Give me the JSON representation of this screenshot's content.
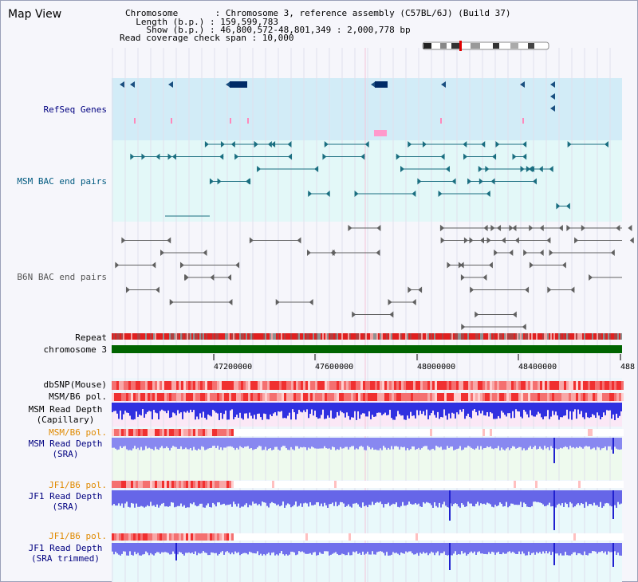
{
  "title": "Map View",
  "info": {
    "chromosome": "Chromosome       : Chromosome 3, reference assembly (C57BL/6J) (Build 37)",
    "length": "  Length (b.p.) : 159,599,783",
    "show": "    Show (b.p.) : 46,800,572-48,801,349 : 2,000,778 bp",
    "coverage": "Read coverage check span : 10,000"
  },
  "axis_ticks": [
    "47200000",
    "47600000",
    "48000000",
    "48400000",
    "488"
  ],
  "tracks": {
    "refseq": "RefSeq Genes",
    "msm_bac": "MSM BAC end pairs",
    "b6n_bac": "B6N BAC end pairs",
    "repeat": "Repeat",
    "chromosome": "chromosome 3",
    "dbsnp": "dbSNP(Mouse)",
    "msm_pol1": "MSM/B6 pol.",
    "msm_depth_cap_1": "MSM Read Depth",
    "msm_depth_cap_2": "(Capillary)",
    "msm_pol2": "MSM/B6 pol.",
    "msm_depth_sra_1": "MSM Read Depth",
    "msm_depth_sra_2": "(SRA)",
    "jf1_pol1": "JF1/B6 pol.",
    "jf1_depth_sra_1": "JF1 Read Depth",
    "jf1_depth_sra_2": "(SRA)",
    "jf1_pol2": "JF1/B6 pol.",
    "jf1_depth_trim_1": "JF1 Read Depth",
    "jf1_depth_trim_2": "(SRA trimmed)"
  },
  "colors": {
    "label_navy": "#000080",
    "label_orange": "#e08a00",
    "label_teal": "#005a80",
    "chromosome_green": "#006400",
    "refseq_bg": "#d2ecf7",
    "bac_msm_bg": "#e3f8f8",
    "depth_blue": "#2020e0"
  }
}
